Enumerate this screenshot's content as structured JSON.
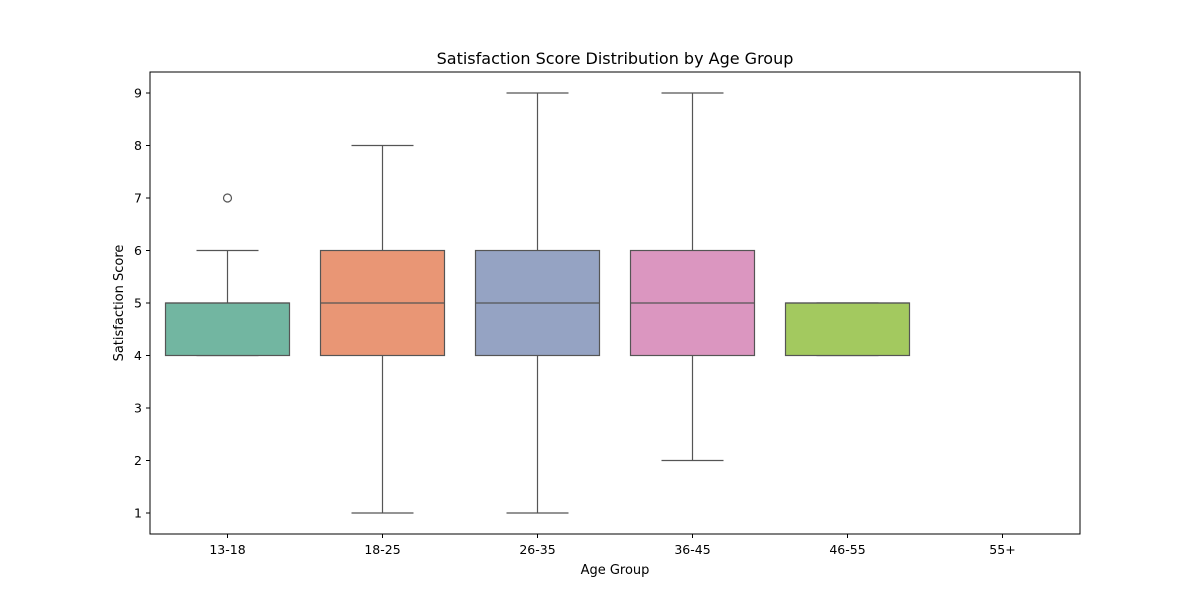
{
  "chart_data": {
    "type": "box",
    "title": "Satisfaction Score Distribution by Age Group",
    "xlabel": "Age Group",
    "ylabel": "Satisfaction Score",
    "categories": [
      "13-18",
      "18-25",
      "26-35",
      "36-45",
      "46-55",
      "55+"
    ],
    "yticks": [
      "1",
      "2",
      "3",
      "4",
      "5",
      "6",
      "7",
      "8",
      "9"
    ],
    "ylim": [
      0.6,
      9.4
    ],
    "grid": false,
    "legend": "none",
    "boxes": [
      {
        "category": "13-18",
        "whisker_low": 4,
        "q1": 4,
        "median": 5,
        "q3": 5,
        "whisker_high": 6,
        "outliers": [
          7
        ],
        "color": "#72b6a1"
      },
      {
        "category": "18-25",
        "whisker_low": 1,
        "q1": 4,
        "median": 5,
        "q3": 6,
        "whisker_high": 8,
        "outliers": [],
        "color": "#e99675"
      },
      {
        "category": "26-35",
        "whisker_low": 1,
        "q1": 4,
        "median": 5,
        "q3": 6,
        "whisker_high": 9,
        "outliers": [],
        "color": "#95a3c3"
      },
      {
        "category": "36-45",
        "whisker_low": 2,
        "q1": 4,
        "median": 5,
        "q3": 6,
        "whisker_high": 9,
        "outliers": [],
        "color": "#db96c0"
      },
      {
        "category": "46-55",
        "whisker_low": 4,
        "q1": 4,
        "median": 5,
        "q3": 5,
        "whisker_high": 5,
        "outliers": [],
        "color": "#a3c95f"
      },
      {
        "category": "55+",
        "whisker_low": null,
        "q1": null,
        "median": null,
        "q3": null,
        "whisker_high": null,
        "outliers": [],
        "color": null
      }
    ],
    "line_color": "#555555"
  }
}
